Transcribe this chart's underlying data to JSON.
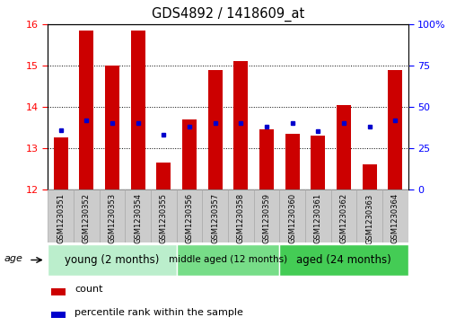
{
  "title": "GDS4892 / 1418609_at",
  "samples": [
    "GSM1230351",
    "GSM1230352",
    "GSM1230353",
    "GSM1230354",
    "GSM1230355",
    "GSM1230356",
    "GSM1230357",
    "GSM1230358",
    "GSM1230359",
    "GSM1230360",
    "GSM1230361",
    "GSM1230362",
    "GSM1230363",
    "GSM1230364"
  ],
  "counts": [
    13.25,
    15.85,
    15.0,
    15.85,
    12.65,
    13.7,
    14.9,
    15.1,
    13.45,
    13.35,
    13.3,
    14.05,
    12.6,
    14.9
  ],
  "percentiles": [
    36,
    42,
    40,
    40,
    33,
    38,
    40,
    40,
    38,
    40,
    35,
    40,
    38,
    42
  ],
  "ymin": 12,
  "ymax": 16,
  "yticks": [
    12,
    13,
    14,
    15,
    16
  ],
  "right_yticks": [
    0,
    25,
    50,
    75,
    100
  ],
  "bar_color": "#cc0000",
  "dot_color": "#0000cc",
  "groups": [
    {
      "label": "young (2 months)",
      "start": 0,
      "end": 5,
      "color": "#bbeecc"
    },
    {
      "label": "middle aged (12 months)",
      "start": 5,
      "end": 9,
      "color": "#77dd88"
    },
    {
      "label": "aged (24 months)",
      "start": 9,
      "end": 14,
      "color": "#44cc55"
    }
  ],
  "legend_count_label": "count",
  "legend_pct_label": "percentile rank within the sample",
  "age_label": "age",
  "tick_bg_color": "#cccccc",
  "tick_border_color": "#aaaaaa"
}
